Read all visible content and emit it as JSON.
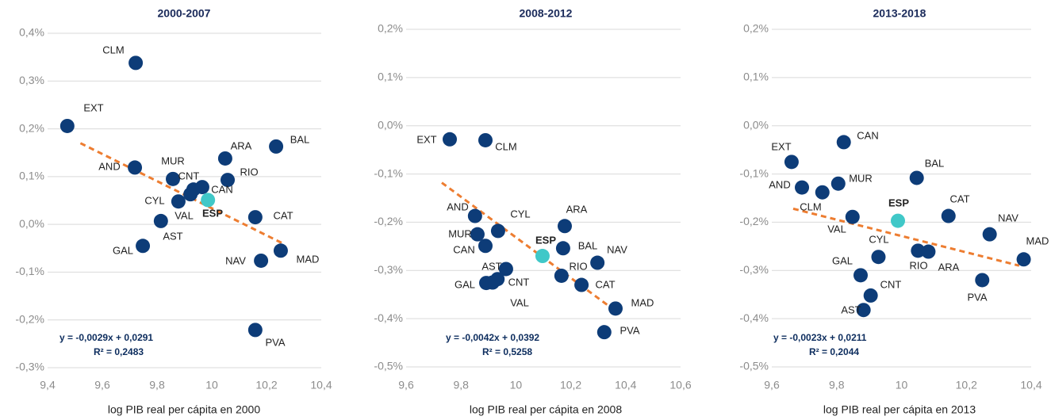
{
  "chart_data": [
    {
      "type": "scatter",
      "title": "2000-2007",
      "x_label": "log PIB real per cápita en 2000",
      "xlim": [
        9.4,
        10.4
      ],
      "xticks": [
        {
          "value": 9.4,
          "label": "9,4"
        },
        {
          "value": 9.6,
          "label": "9,6"
        },
        {
          "value": 9.8,
          "label": "9,8"
        },
        10,
        {
          "value": 10.2,
          "label": "10,2"
        },
        {
          "value": 10.4,
          "label": "10,4"
        }
      ],
      "ylim": [
        -0.3,
        0.4
      ],
      "yticks": [
        {
          "value": 0.4,
          "label": "0,4%"
        },
        {
          "value": 0.3,
          "label": "0,3%"
        },
        {
          "value": 0.2,
          "label": "0,2%"
        },
        {
          "value": 0.1,
          "label": "0,1%"
        },
        {
          "value": 0,
          "label": "0,0%"
        },
        {
          "value": -0.1,
          "label": "-0,1%"
        },
        {
          "value": -0.2,
          "label": "-0,2%"
        },
        {
          "value": -0.3,
          "label": "-0,3%"
        }
      ],
      "grid": true,
      "labels": [
        "CLM",
        "EXT",
        "AND",
        "MUR",
        "CNT",
        "CAN",
        "ESP",
        "CYL",
        "VAL",
        "AST",
        "GAL",
        "ARA",
        "RIO",
        "BAL",
        "CAT",
        "NAV",
        "MAD",
        "PVA"
      ],
      "x": [
        9.722,
        9.472,
        9.719,
        9.858,
        9.933,
        9.965,
        9.986,
        9.878,
        9.922,
        9.814,
        9.748,
        10.049,
        10.058,
        10.235,
        10.159,
        10.18,
        10.252,
        10.159
      ],
      "values": [
        0.338,
        0.206,
        0.119,
        0.095,
        0.073,
        0.078,
        0.051,
        0.048,
        0.063,
        0.007,
        -0.045,
        0.138,
        0.093,
        0.163,
        0.015,
        -0.076,
        -0.055,
        -0.221
      ],
      "color": "#0d3c78",
      "point_colors": [
        "#0d3c78",
        "#0d3c78",
        "#0d3c78",
        "#0d3c78",
        "#0d3c78",
        "#0d3c78",
        "#40c8c8",
        "#0d3c78",
        "#0d3c78",
        "#0d3c78",
        "#0d3c78",
        "#0d3c78",
        "#0d3c78",
        "#0d3c78",
        "#0d3c78",
        "#0d3c78",
        "#0d3c78",
        "#0d3c78"
      ],
      "trendline": {
        "color": "#ed7d31",
        "x": [
          9.52,
          10.26
        ],
        "values": [
          0.17,
          -0.04
        ]
      },
      "equation": "y = -0,0029x + 0,0291",
      "r_squared": "R² = 0,2483"
    },
    {
      "type": "scatter",
      "title": "2008-2012",
      "x_label": "log PIB real per cápita en 2008",
      "xlim": [
        9.6,
        10.6
      ],
      "xticks": [
        {
          "value": 9.6,
          "label": "9,6"
        },
        {
          "value": 9.8,
          "label": "9,8"
        },
        10,
        {
          "value": 10.2,
          "label": "10,2"
        },
        {
          "value": 10.4,
          "label": "10,4"
        },
        {
          "value": 10.6,
          "label": "10,6"
        }
      ],
      "ylim": [
        -0.5,
        0.2
      ],
      "yticks": [
        {
          "value": 0.2,
          "label": "0,2%"
        },
        {
          "value": 0.1,
          "label": "0,1%"
        },
        {
          "value": 0,
          "label": "0,0%"
        },
        {
          "value": -0.1,
          "label": "-0,1%"
        },
        {
          "value": -0.2,
          "label": "-0,2%"
        },
        {
          "value": -0.3,
          "label": "-0,3%"
        },
        {
          "value": -0.4,
          "label": "-0,4%"
        },
        {
          "value": -0.5,
          "label": "-0,5%"
        }
      ],
      "grid": true,
      "labels": [
        "EXT",
        "CLM",
        "AND",
        "CYL",
        "ARA",
        "MUR",
        "ESP",
        "BAL",
        "CAN",
        "NAV",
        "AST",
        "RIO",
        "GAL",
        "CNT",
        "CAT",
        "VAL",
        "MAD",
        "PVA"
      ],
      "x": [
        9.759,
        9.889,
        9.851,
        9.935,
        10.178,
        9.86,
        10.097,
        10.172,
        9.889,
        10.297,
        9.964,
        10.166,
        9.892,
        9.933,
        10.239,
        9.915,
        10.363,
        10.322
      ],
      "values": [
        -0.028,
        -0.03,
        -0.187,
        -0.218,
        -0.208,
        -0.225,
        -0.27,
        -0.254,
        -0.249,
        -0.284,
        -0.297,
        -0.311,
        -0.326,
        -0.318,
        -0.33,
        -0.325,
        -0.379,
        -0.428
      ],
      "color": "#0d3c78",
      "point_colors": [
        "#0d3c78",
        "#0d3c78",
        "#0d3c78",
        "#0d3c78",
        "#0d3c78",
        "#0d3c78",
        "#40c8c8",
        "#0d3c78",
        "#0d3c78",
        "#0d3c78",
        "#0d3c78",
        "#0d3c78",
        "#0d3c78",
        "#0d3c78",
        "#0d3c78",
        "#0d3c78",
        "#0d3c78",
        "#0d3c78"
      ],
      "trendline": {
        "color": "#ed7d31",
        "x": [
          9.73,
          10.375
        ],
        "values": [
          -0.118,
          -0.389
        ]
      },
      "equation": "y = -0,0042x + 0,0392",
      "r_squared": "R² = 0,5258"
    },
    {
      "type": "scatter",
      "title": "2013-2018",
      "x_label": "log PIB real per cápita en 2013",
      "xlim": [
        9.6,
        10.4
      ],
      "xticks": [
        {
          "value": 9.6,
          "label": "9,6"
        },
        {
          "value": 9.8,
          "label": "9,8"
        },
        10,
        {
          "value": 10.2,
          "label": "10,2"
        },
        {
          "value": 10.4,
          "label": "10,4"
        }
      ],
      "ylim": [
        -0.5,
        0.2
      ],
      "yticks": [
        {
          "value": 0.2,
          "label": "0,2%"
        },
        {
          "value": 0.1,
          "label": "0,1%"
        },
        {
          "value": 0,
          "label": "0,0%"
        },
        {
          "value": -0.1,
          "label": "-0,1%"
        },
        {
          "value": -0.2,
          "label": "-0,2%"
        },
        {
          "value": -0.3,
          "label": "-0,3%"
        },
        {
          "value": -0.4,
          "label": "-0,4%"
        },
        {
          "value": -0.5,
          "label": "-0,5%"
        }
      ],
      "grid": true,
      "labels": [
        "CAN",
        "EXT",
        "BAL",
        "MUR",
        "AND",
        "CLM",
        "VAL",
        "ESP",
        "CAT",
        "NAV",
        "MAD",
        "RIO",
        "ARA",
        "CYL",
        "PVA",
        "GAL",
        "CNT",
        "AST"
      ],
      "x": [
        9.822,
        9.661,
        10.047,
        9.805,
        9.693,
        9.756,
        9.849,
        9.989,
        10.145,
        10.272,
        10.377,
        10.051,
        10.083,
        9.929,
        10.249,
        9.874,
        9.905,
        9.883
      ],
      "values": [
        -0.034,
        -0.075,
        -0.108,
        -0.12,
        -0.128,
        -0.138,
        -0.189,
        -0.197,
        -0.187,
        -0.225,
        -0.277,
        -0.259,
        -0.261,
        -0.272,
        -0.32,
        -0.31,
        -0.352,
        -0.382
      ],
      "color": "#0d3c78",
      "point_colors": [
        "#0d3c78",
        "#0d3c78",
        "#0d3c78",
        "#0d3c78",
        "#0d3c78",
        "#0d3c78",
        "#0d3c78",
        "#40c8c8",
        "#0d3c78",
        "#0d3c78",
        "#0d3c78",
        "#0d3c78",
        "#0d3c78",
        "#0d3c78",
        "#0d3c78",
        "#0d3c78",
        "#0d3c78",
        "#0d3c78"
      ],
      "trendline": {
        "color": "#ed7d31",
        "x": [
          9.666,
          10.363
        ],
        "values": [
          -0.172,
          -0.29
        ]
      },
      "equation": "y = -0,0023x + 0,0211",
      "r_squared": "R² = 0,2044"
    }
  ]
}
